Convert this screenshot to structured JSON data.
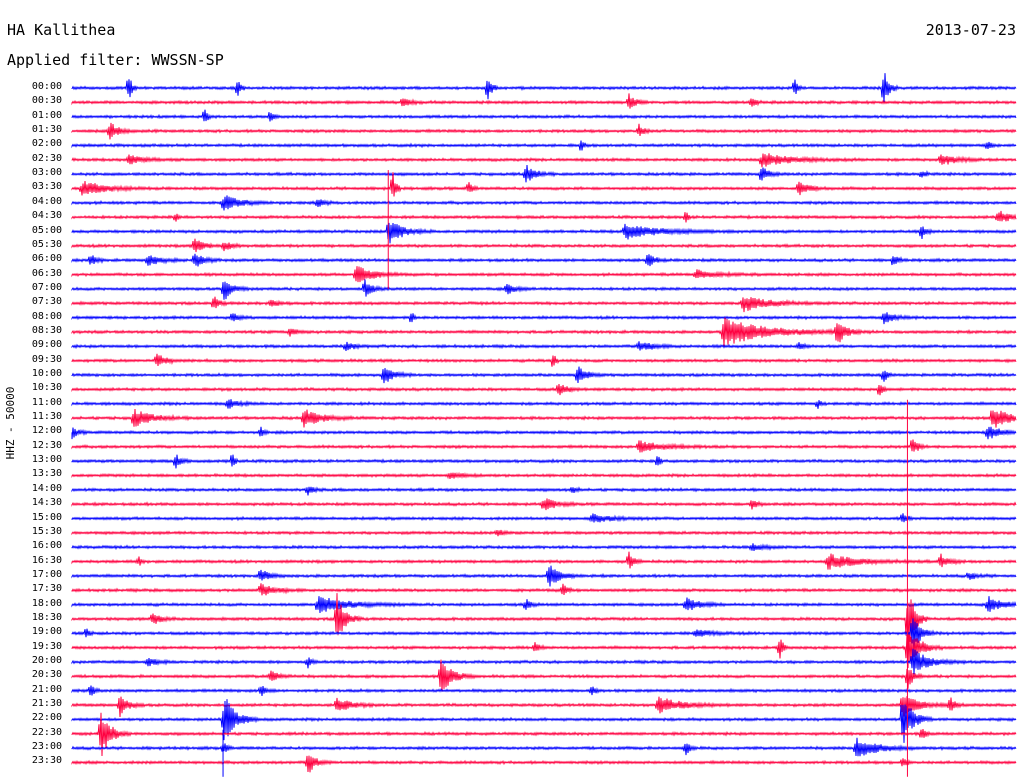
{
  "header": {
    "station": "HA Kallithea",
    "date": "2013-07-23",
    "filter": "Applied filter: WWSSN-SP"
  },
  "chart_data": {
    "type": "line",
    "title": "HA Kallithea",
    "ylabel": "HHZ - 50000",
    "row_colors": [
      "#0000ff",
      "#ff0040"
    ],
    "rows": [
      {
        "label": "00:00",
        "events": [
          [
            0.06,
            14,
            3
          ],
          [
            0.175,
            12,
            3
          ],
          [
            0.44,
            15,
            4
          ],
          [
            0.765,
            10,
            3
          ],
          [
            0.86,
            18,
            6
          ]
        ]
      },
      {
        "label": "00:30",
        "events": [
          [
            0.35,
            5,
            8
          ],
          [
            0.59,
            8,
            8
          ],
          [
            0.72,
            6,
            4
          ]
        ]
      },
      {
        "label": "01:00",
        "events": [
          [
            0.14,
            8,
            3
          ],
          [
            0.21,
            7,
            3
          ]
        ]
      },
      {
        "label": "01:30",
        "events": [
          [
            0.04,
            9,
            10
          ],
          [
            0.6,
            7,
            6
          ]
        ]
      },
      {
        "label": "02:00",
        "events": [
          [
            0.54,
            8,
            2
          ],
          [
            0.97,
            6,
            3
          ]
        ]
      },
      {
        "label": "02:30",
        "events": [
          [
            0.06,
            5,
            20
          ],
          [
            0.73,
            7,
            40
          ],
          [
            0.92,
            6,
            20
          ]
        ]
      },
      {
        "label": "03:00",
        "events": [
          [
            0.48,
            10,
            12
          ],
          [
            0.73,
            9,
            8
          ],
          [
            0.9,
            6,
            3
          ]
        ]
      },
      {
        "label": "03:30",
        "events": [
          [
            0.01,
            8,
            30
          ],
          [
            0.34,
            16,
            3
          ],
          [
            0.42,
            6,
            4
          ],
          [
            0.77,
            8,
            12
          ]
        ]
      },
      {
        "label": "04:00",
        "events": [
          [
            0.16,
            9,
            20
          ],
          [
            0.26,
            4,
            10
          ]
        ]
      },
      {
        "label": "04:30",
        "events": [
          [
            0.11,
            6,
            2
          ],
          [
            0.65,
            8,
            2
          ],
          [
            0.98,
            7,
            18
          ]
        ]
      },
      {
        "label": "05:00",
        "events": [
          [
            0.335,
            14,
            18
          ],
          [
            0.585,
            8,
            45
          ],
          [
            0.9,
            9,
            4
          ]
        ]
      },
      {
        "label": "05:30",
        "events": [
          [
            0.13,
            9,
            10
          ],
          [
            0.16,
            6,
            10
          ]
        ]
      },
      {
        "label": "06:00",
        "events": [
          [
            0.02,
            6,
            6
          ],
          [
            0.08,
            6,
            16
          ],
          [
            0.13,
            9,
            10
          ],
          [
            0.61,
            8,
            8
          ],
          [
            0.87,
            7,
            5
          ]
        ]
      },
      {
        "label": "06:30",
        "events": [
          [
            0.3,
            12,
            20
          ],
          [
            0.66,
            5,
            25
          ]
        ]
      },
      {
        "label": "07:00",
        "events": [
          [
            0.16,
            14,
            10
          ],
          [
            0.31,
            9,
            8
          ],
          [
            0.46,
            6,
            10
          ]
        ]
      },
      {
        "label": "07:30",
        "events": [
          [
            0.15,
            7,
            6
          ],
          [
            0.71,
            8,
            35
          ],
          [
            0.21,
            4,
            10
          ]
        ]
      },
      {
        "label": "08:00",
        "events": [
          [
            0.17,
            6,
            6
          ],
          [
            0.36,
            7,
            2
          ],
          [
            0.86,
            6,
            14
          ]
        ]
      },
      {
        "label": "08:30",
        "events": [
          [
            0.69,
            14,
            60
          ],
          [
            0.81,
            14,
            10
          ],
          [
            0.23,
            4,
            10
          ]
        ]
      },
      {
        "label": "09:00",
        "events": [
          [
            0.29,
            5,
            10
          ],
          [
            0.6,
            5,
            20
          ],
          [
            0.77,
            4,
            6
          ]
        ]
      },
      {
        "label": "09:30",
        "events": [
          [
            0.09,
            7,
            10
          ],
          [
            0.51,
            10,
            2
          ]
        ]
      },
      {
        "label": "10:00",
        "events": [
          [
            0.33,
            10,
            12
          ],
          [
            0.535,
            10,
            10
          ],
          [
            0.86,
            8,
            3
          ]
        ]
      },
      {
        "label": "10:30",
        "events": [
          [
            0.515,
            7,
            10
          ],
          [
            0.855,
            10,
            3
          ]
        ]
      },
      {
        "label": "11:00",
        "events": [
          [
            0.165,
            5,
            12
          ],
          [
            0.79,
            5,
            3
          ]
        ]
      },
      {
        "label": "11:30",
        "events": [
          [
            0.065,
            9,
            25
          ],
          [
            0.245,
            9,
            25
          ],
          [
            0.975,
            12,
            20
          ]
        ]
      },
      {
        "label": "12:00",
        "events": [
          [
            0.0,
            6,
            6
          ],
          [
            0.2,
            6,
            3
          ],
          [
            0.97,
            8,
            15
          ]
        ]
      },
      {
        "label": "12:30",
        "events": [
          [
            0.6,
            6,
            35
          ],
          [
            0.89,
            10,
            6
          ]
        ]
      },
      {
        "label": "13:00",
        "events": [
          [
            0.11,
            7,
            6
          ],
          [
            0.17,
            9,
            2
          ],
          [
            0.62,
            8,
            2
          ]
        ]
      },
      {
        "label": "13:30",
        "events": [
          [
            0.4,
            3,
            20
          ]
        ]
      },
      {
        "label": "14:00",
        "events": [
          [
            0.25,
            5,
            6
          ],
          [
            0.53,
            4,
            4
          ]
        ]
      },
      {
        "label": "14:30",
        "events": [
          [
            0.5,
            7,
            14
          ],
          [
            0.72,
            6,
            6
          ]
        ]
      },
      {
        "label": "15:00",
        "events": [
          [
            0.55,
            4,
            30
          ],
          [
            0.88,
            7,
            4
          ]
        ]
      },
      {
        "label": "15:30",
        "events": [
          [
            0.45,
            3,
            10
          ]
        ]
      },
      {
        "label": "16:00",
        "events": [
          [
            0.72,
            3,
            20
          ]
        ]
      },
      {
        "label": "16:30",
        "events": [
          [
            0.07,
            6,
            3
          ],
          [
            0.59,
            9,
            6
          ],
          [
            0.8,
            8,
            40
          ],
          [
            0.92,
            7,
            10
          ]
        ]
      },
      {
        "label": "17:00",
        "events": [
          [
            0.2,
            7,
            10
          ],
          [
            0.505,
            12,
            14
          ],
          [
            0.95,
            4,
            10
          ]
        ]
      },
      {
        "label": "17:30",
        "events": [
          [
            0.2,
            6,
            20
          ],
          [
            0.52,
            6,
            5
          ]
        ]
      },
      {
        "label": "18:00",
        "events": [
          [
            0.26,
            9,
            40
          ],
          [
            0.48,
            6,
            6
          ],
          [
            0.65,
            7,
            20
          ],
          [
            0.97,
            8,
            20
          ]
        ]
      },
      {
        "label": "18:30",
        "events": [
          [
            0.085,
            7,
            10
          ],
          [
            0.28,
            28,
            10
          ],
          [
            0.885,
            40,
            8
          ]
        ]
      },
      {
        "label": "19:00",
        "events": [
          [
            0.015,
            6,
            3
          ],
          [
            0.66,
            4,
            20
          ],
          [
            0.89,
            20,
            10
          ]
        ]
      },
      {
        "label": "19:30",
        "events": [
          [
            0.49,
            5,
            6
          ],
          [
            0.75,
            12,
            3
          ],
          [
            0.885,
            26,
            14
          ]
        ]
      },
      {
        "label": "20:00",
        "events": [
          [
            0.08,
            5,
            10
          ],
          [
            0.25,
            5,
            4
          ],
          [
            0.89,
            14,
            22
          ]
        ]
      },
      {
        "label": "20:30",
        "events": [
          [
            0.21,
            7,
            10
          ],
          [
            0.39,
            20,
            14
          ],
          [
            0.885,
            14,
            6
          ]
        ]
      },
      {
        "label": "21:00",
        "events": [
          [
            0.02,
            6,
            4
          ],
          [
            0.2,
            6,
            6
          ],
          [
            0.55,
            6,
            4
          ]
        ]
      },
      {
        "label": "21:30",
        "events": [
          [
            0.05,
            12,
            10
          ],
          [
            0.28,
            8,
            18
          ],
          [
            0.62,
            9,
            30
          ],
          [
            0.88,
            12,
            20
          ],
          [
            0.93,
            8,
            6
          ]
        ]
      },
      {
        "label": "22:00",
        "events": [
          [
            0.16,
            30,
            14
          ],
          [
            0.88,
            28,
            12
          ]
        ]
      },
      {
        "label": "22:30",
        "events": [
          [
            0.03,
            28,
            12
          ],
          [
            0.9,
            6,
            4
          ]
        ]
      },
      {
        "label": "23:00",
        "events": [
          [
            0.65,
            8,
            4
          ],
          [
            0.83,
            10,
            30
          ],
          [
            0.16,
            6,
            4
          ]
        ]
      },
      {
        "label": "23:30",
        "events": [
          [
            0.25,
            12,
            10
          ],
          [
            0.88,
            6,
            4
          ]
        ]
      }
    ],
    "vertical_traces": [
      {
        "x": 0.335,
        "from_row": 6,
        "to_row": 14
      },
      {
        "x": 0.885,
        "from_row": 22,
        "to_row": 48
      },
      {
        "x": 0.16,
        "from_row": 45,
        "to_row": 48
      }
    ]
  }
}
